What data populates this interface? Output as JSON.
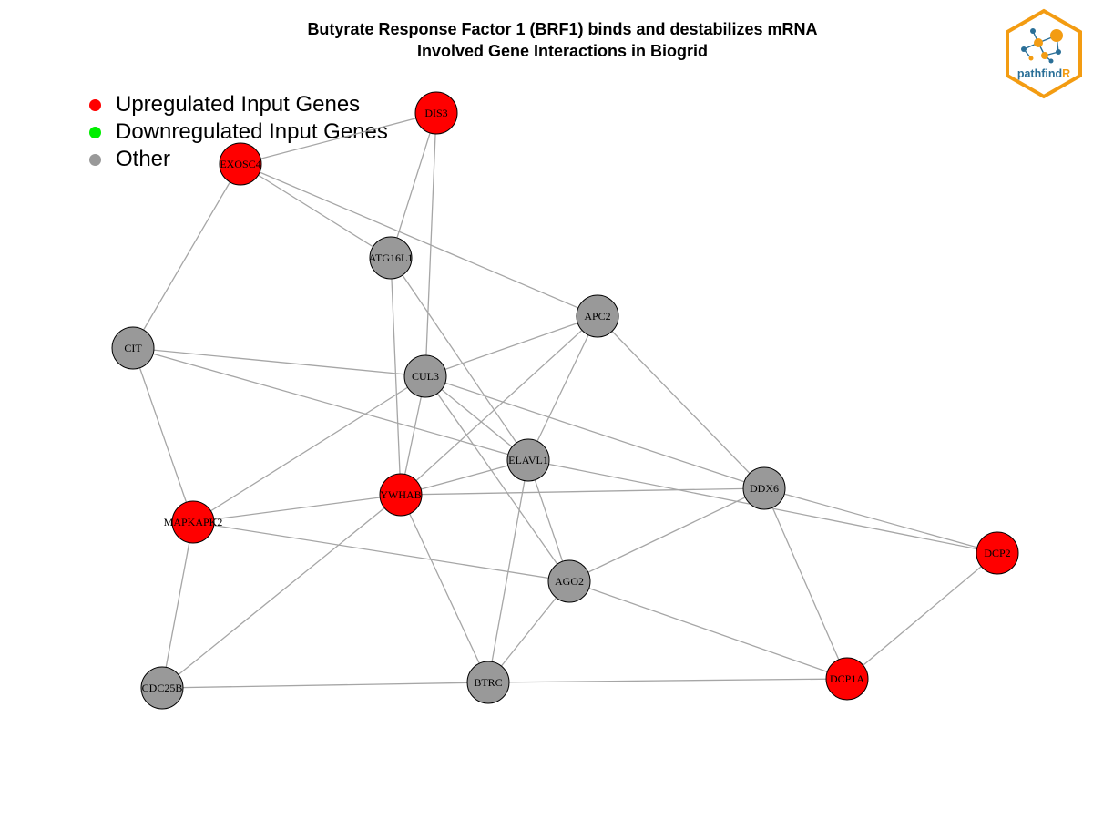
{
  "title": {
    "line1": "Butyrate Response Factor 1 (BRF1) binds and destabilizes mRNA",
    "line2": "Involved Gene Interactions in Biogrid"
  },
  "legend": [
    {
      "label": "Upregulated Input Genes",
      "color": "#ff0000"
    },
    {
      "label": "Downregulated Input Genes",
      "color": "#00ee00"
    },
    {
      "label": "Other",
      "color": "#999999"
    }
  ],
  "logo": {
    "text_prefix": "pathfind",
    "text_suffix": "R"
  },
  "colors": {
    "up": "#ff0000",
    "down": "#00ee00",
    "other": "#999999",
    "edge": "#a6a6a6",
    "logo_orange": "#f39c12",
    "logo_blue": "#2a6f97"
  },
  "network": {
    "nodes": [
      {
        "id": "DIS3",
        "status": "up"
      },
      {
        "id": "EXOSC4",
        "status": "up"
      },
      {
        "id": "ATG16L1",
        "status": "other"
      },
      {
        "id": "APC2",
        "status": "other"
      },
      {
        "id": "CIT",
        "status": "other"
      },
      {
        "id": "CUL3",
        "status": "other"
      },
      {
        "id": "ELAVL1",
        "status": "other"
      },
      {
        "id": "YWHAB",
        "status": "up"
      },
      {
        "id": "DDX6",
        "status": "other"
      },
      {
        "id": "MAPKAPK2",
        "status": "up"
      },
      {
        "id": "DCP2",
        "status": "up"
      },
      {
        "id": "AGO2",
        "status": "other"
      },
      {
        "id": "CDC25B",
        "status": "other"
      },
      {
        "id": "BTRC",
        "status": "other"
      },
      {
        "id": "DCP1A",
        "status": "up"
      }
    ],
    "edges": [
      [
        "EXOSC4",
        "DIS3"
      ],
      [
        "DIS3",
        "ATG16L1"
      ],
      [
        "DIS3",
        "CUL3"
      ],
      [
        "EXOSC4",
        "ATG16L1"
      ],
      [
        "EXOSC4",
        "APC2"
      ],
      [
        "EXOSC4",
        "CIT"
      ],
      [
        "ATG16L1",
        "YWHAB"
      ],
      [
        "ATG16L1",
        "ELAVL1"
      ],
      [
        "APC2",
        "CUL3"
      ],
      [
        "APC2",
        "YWHAB"
      ],
      [
        "APC2",
        "ELAVL1"
      ],
      [
        "APC2",
        "DDX6"
      ],
      [
        "CIT",
        "CUL3"
      ],
      [
        "CIT",
        "ELAVL1"
      ],
      [
        "CIT",
        "MAPKAPK2"
      ],
      [
        "CUL3",
        "MAPKAPK2"
      ],
      [
        "CUL3",
        "YWHAB"
      ],
      [
        "CUL3",
        "ELAVL1"
      ],
      [
        "CUL3",
        "AGO2"
      ],
      [
        "CUL3",
        "DDX6"
      ],
      [
        "ELAVL1",
        "YWHAB"
      ],
      [
        "ELAVL1",
        "AGO2"
      ],
      [
        "ELAVL1",
        "BTRC"
      ],
      [
        "ELAVL1",
        "DCP2"
      ],
      [
        "YWHAB",
        "MAPKAPK2"
      ],
      [
        "YWHAB",
        "DDX6"
      ],
      [
        "YWHAB",
        "CDC25B"
      ],
      [
        "YWHAB",
        "BTRC"
      ],
      [
        "MAPKAPK2",
        "AGO2"
      ],
      [
        "MAPKAPK2",
        "CDC25B"
      ],
      [
        "DDX6",
        "AGO2"
      ],
      [
        "DDX6",
        "DCP2"
      ],
      [
        "DDX6",
        "DCP1A"
      ],
      [
        "AGO2",
        "BTRC"
      ],
      [
        "AGO2",
        "DCP1A"
      ],
      [
        "DCP2",
        "DCP1A"
      ],
      [
        "CDC25B",
        "BTRC"
      ],
      [
        "BTRC",
        "DCP1A"
      ]
    ]
  }
}
